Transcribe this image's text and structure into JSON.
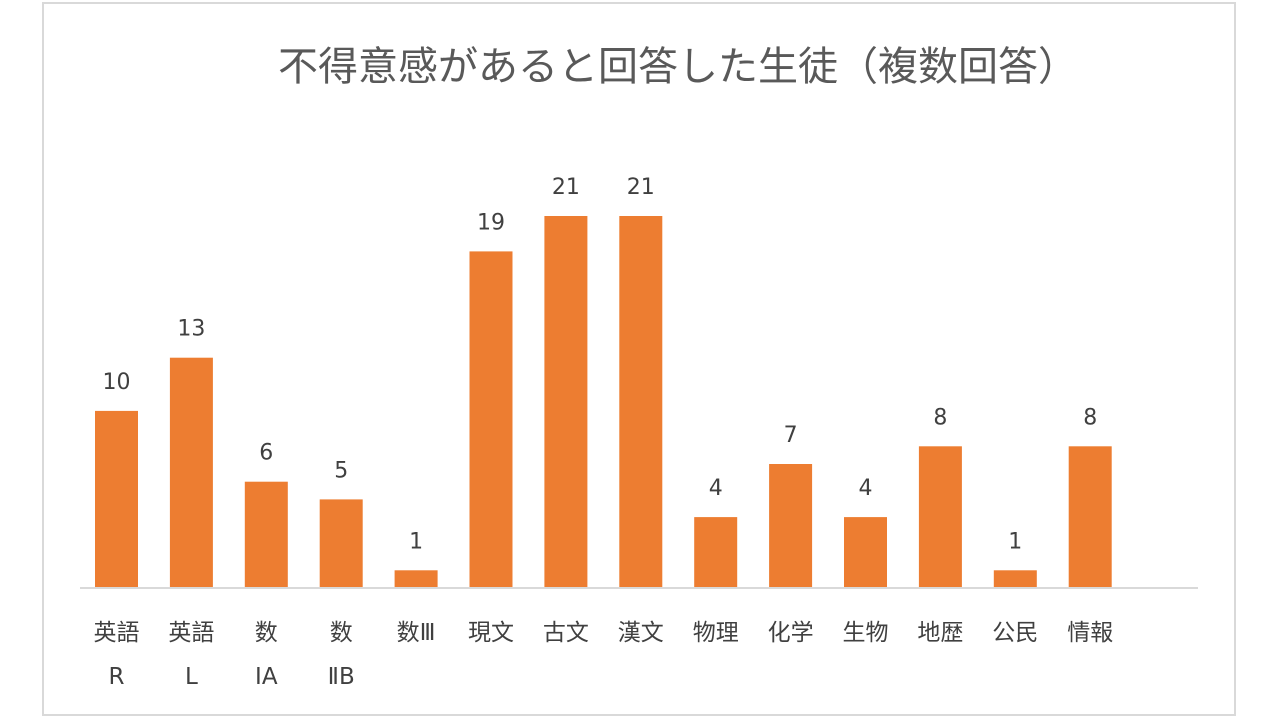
{
  "chart_data": {
    "type": "bar",
    "title": "不得意感があると回答した生徒（複数回答）",
    "categories": [
      [
        "英語",
        "R"
      ],
      [
        "英語",
        "L"
      ],
      [
        "数",
        "ⅠA"
      ],
      [
        "数",
        "ⅡB"
      ],
      [
        "数Ⅲ"
      ],
      [
        "現文"
      ],
      [
        "古文"
      ],
      [
        "漢文"
      ],
      [
        "物理"
      ],
      [
        "化学"
      ],
      [
        "生物"
      ],
      [
        "地歴"
      ],
      [
        "公民"
      ],
      [
        "情報"
      ]
    ],
    "values": [
      10,
      13,
      6,
      5,
      1,
      19,
      21,
      21,
      4,
      7,
      4,
      8,
      1,
      8
    ],
    "ylim": [
      0,
      21
    ],
    "grid": false,
    "legend": "none",
    "colors": {
      "bar": "#ed7d31",
      "axis": "#d9d9d9",
      "text": "#404040",
      "title": "#595959",
      "frame": "#d9d9d9"
    }
  }
}
